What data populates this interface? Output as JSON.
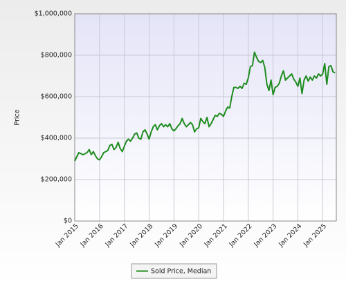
{
  "chart_data": {
    "type": "line",
    "ylabel": "Price",
    "x": [
      2015,
      2015.083,
      2015.167,
      2015.25,
      2015.333,
      2015.417,
      2015.5,
      2015.583,
      2015.667,
      2015.75,
      2015.833,
      2015.917,
      2016,
      2016.083,
      2016.167,
      2016.25,
      2016.333,
      2016.417,
      2016.5,
      2016.583,
      2016.667,
      2016.75,
      2016.833,
      2016.917,
      2017,
      2017.083,
      2017.167,
      2017.25,
      2017.333,
      2017.417,
      2017.5,
      2017.583,
      2017.667,
      2017.75,
      2017.833,
      2017.917,
      2018,
      2018.083,
      2018.167,
      2018.25,
      2018.333,
      2018.417,
      2018.5,
      2018.583,
      2018.667,
      2018.75,
      2018.833,
      2018.917,
      2019,
      2019.083,
      2019.167,
      2019.25,
      2019.333,
      2019.417,
      2019.5,
      2019.583,
      2019.667,
      2019.75,
      2019.833,
      2019.917,
      2020,
      2020.083,
      2020.167,
      2020.25,
      2020.333,
      2020.417,
      2020.5,
      2020.583,
      2020.667,
      2020.75,
      2020.833,
      2020.917,
      2021,
      2021.083,
      2021.167,
      2021.25,
      2021.333,
      2021.417,
      2021.5,
      2021.583,
      2021.667,
      2021.75,
      2021.833,
      2021.917,
      2022,
      2022.083,
      2022.167,
      2022.25,
      2022.333,
      2022.417,
      2022.5,
      2022.583,
      2022.667,
      2022.75,
      2022.833,
      2022.917,
      2023,
      2023.083,
      2023.167,
      2023.25,
      2023.333,
      2023.417,
      2023.5,
      2023.583,
      2023.667,
      2023.75,
      2023.833,
      2023.917,
      2024,
      2024.083,
      2024.167,
      2024.25,
      2024.333,
      2024.417,
      2024.5,
      2024.583,
      2024.667,
      2024.75,
      2024.833,
      2024.917,
      2025,
      2025.083,
      2025.167,
      2025.25,
      2025.333,
      2025.417,
      2025.5
    ],
    "series": [
      {
        "name": "Sold Price, Median",
        "color": "#1e8c1e",
        "values": [
          290000,
          310000,
          330000,
          325000,
          320000,
          325000,
          330000,
          345000,
          320000,
          335000,
          315000,
          300000,
          295000,
          310000,
          330000,
          335000,
          340000,
          365000,
          370000,
          345000,
          355000,
          380000,
          350000,
          335000,
          360000,
          385000,
          395000,
          385000,
          400000,
          420000,
          425000,
          400000,
          395000,
          430000,
          440000,
          420000,
          395000,
          430000,
          455000,
          465000,
          440000,
          460000,
          470000,
          455000,
          465000,
          455000,
          470000,
          445000,
          435000,
          445000,
          460000,
          470000,
          495000,
          470000,
          455000,
          465000,
          475000,
          465000,
          430000,
          445000,
          450000,
          495000,
          480000,
          470000,
          500000,
          455000,
          470000,
          490000,
          510000,
          505000,
          520000,
          515000,
          505000,
          530000,
          550000,
          545000,
          600000,
          645000,
          645000,
          640000,
          650000,
          640000,
          665000,
          660000,
          690000,
          745000,
          750000,
          815000,
          790000,
          770000,
          765000,
          775000,
          740000,
          660000,
          630000,
          680000,
          610000,
          645000,
          650000,
          665000,
          700000,
          725000,
          680000,
          690000,
          700000,
          710000,
          685000,
          670000,
          650000,
          690000,
          615000,
          680000,
          700000,
          675000,
          695000,
          680000,
          700000,
          690000,
          710000,
          700000,
          710000,
          760000,
          660000,
          745000,
          750000,
          720000,
          715000
        ]
      }
    ],
    "xlim": [
      2015,
      2025.55
    ],
    "xticks": [
      {
        "value": 2015,
        "label": "Jan 2015"
      },
      {
        "value": 2016,
        "label": "Jan 2016"
      },
      {
        "value": 2017,
        "label": "Jan 2017"
      },
      {
        "value": 2018,
        "label": "Jan 2018"
      },
      {
        "value": 2019,
        "label": "Jan 2019"
      },
      {
        "value": 2020,
        "label": "Jan 2020"
      },
      {
        "value": 2021,
        "label": "Jan 2021"
      },
      {
        "value": 2022,
        "label": "Jan 2022"
      },
      {
        "value": 2023,
        "label": "Jan 2023"
      },
      {
        "value": 2024,
        "label": "Jan 2024"
      },
      {
        "value": 2025,
        "label": "Jan 2025"
      }
    ],
    "ylim": [
      0,
      1000000
    ],
    "yticks": [
      {
        "value": 0,
        "label": "$0"
      },
      {
        "value": 200000,
        "label": "$200,000"
      },
      {
        "value": 400000,
        "label": "$400,000"
      },
      {
        "value": 600000,
        "label": "$600,000"
      },
      {
        "value": 800000,
        "label": "$800,000"
      },
      {
        "value": 1000000,
        "label": "$1,000,000"
      }
    ],
    "grid": true
  }
}
